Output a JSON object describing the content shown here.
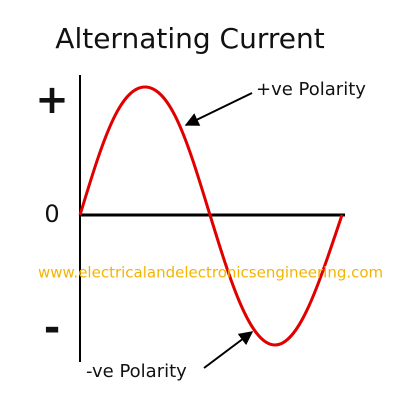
{
  "title": "Alternating Current",
  "axis_labels": {
    "plus": "+",
    "zero": "0",
    "minus": "-"
  },
  "annotations": {
    "positive": "+ve Polarity",
    "negative": "-ve Polarity"
  },
  "watermark": "www.electricalandelectronicsengineering.com"
}
